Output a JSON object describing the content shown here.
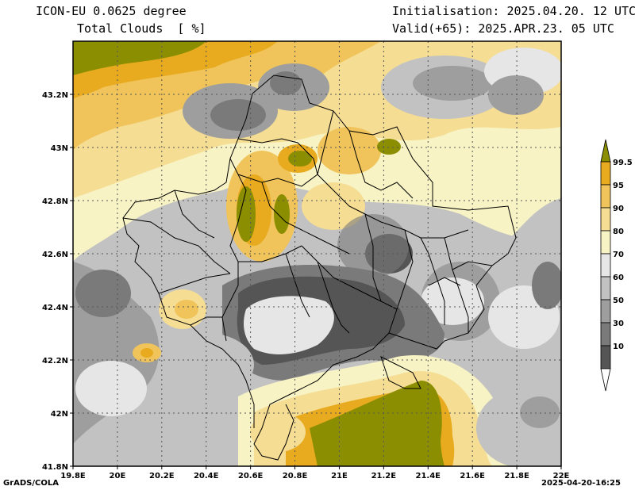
{
  "header": {
    "model": "ICON-EU 0.0625 degree",
    "variable": "Total Clouds  [ %]",
    "init": "Initialisation: 2025.04.20. 12 UTC",
    "valid": "Valid(+65): 2025.APR.23. 05 UTC"
  },
  "axes": {
    "lat_labels": [
      "43.2N",
      "43N",
      "42.8N",
      "42.6N",
      "42.4N",
      "42.2N",
      "42N",
      "41.8N"
    ],
    "lat_values": [
      43.2,
      43.0,
      42.8,
      42.6,
      42.4,
      42.2,
      42.0,
      41.8
    ],
    "lon_labels": [
      "19.8E",
      "20E",
      "20.2E",
      "20.4E",
      "20.6E",
      "20.8E",
      "21E",
      "21.2E",
      "21.4E",
      "21.6E",
      "21.8E",
      "22E"
    ],
    "lon_values": [
      19.8,
      20.0,
      20.2,
      20.4,
      20.6,
      20.8,
      21.0,
      21.2,
      21.4,
      21.6,
      21.8,
      22.0
    ],
    "lon_range": [
      19.8,
      22.0
    ],
    "lat_range": [
      41.8,
      43.4
    ],
    "grid": true
  },
  "legend": {
    "labels": [
      "99.5",
      "95",
      "90",
      "80",
      "70",
      "60",
      "50",
      "30",
      "10"
    ],
    "colors": [
      "#8a8e00",
      "#e8aa1e",
      "#f0c45a",
      "#f5dd94",
      "#f7f3c4",
      "#e6e6e6",
      "#c2c2c2",
      "#9e9e9e",
      "#7a7a7a",
      "#555555",
      "#ffffff"
    ]
  },
  "footer": {
    "left": "GrADS/COLA",
    "right": "2025-04-20-16:25"
  }
}
